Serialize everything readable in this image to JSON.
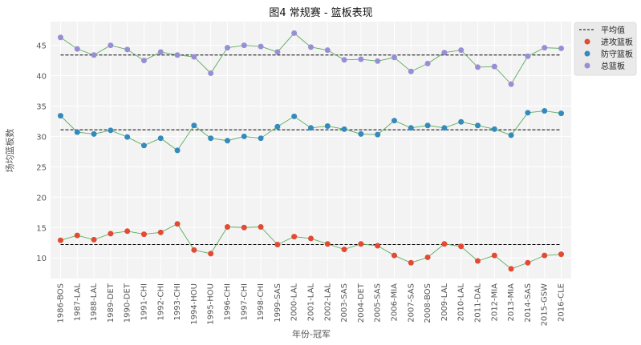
{
  "chart_data": {
    "type": "line",
    "title": "图4 常规赛 - 篮板表现",
    "xlabel": "年份-冠军",
    "ylabel": "场均篮板数",
    "categories": [
      "1986-BOS",
      "1987-LAL",
      "1988-LAL",
      "1989-DET",
      "1990-DET",
      "1991-CHI",
      "1992-CHI",
      "1993-CHI",
      "1994-HOU",
      "1995-HOU",
      "1996-CHI",
      "1997-CHI",
      "1998-CHI",
      "1999-SAS",
      "2000-LAL",
      "2001-LAL",
      "2002-LAL",
      "2003-SAS",
      "2004-DET",
      "2005-SAS",
      "2006-MIA",
      "2007-SAS",
      "2008-BOS",
      "2009-LAL",
      "2010-LAL",
      "2011-DAL",
      "2012-MIA",
      "2013-MIA",
      "2014-SAS",
      "2015-GSW",
      "2016-CLE"
    ],
    "ylim": [
      6.6,
      48.9
    ],
    "yticks": [
      10,
      15,
      20,
      25,
      30,
      35,
      40,
      45
    ],
    "grid": true,
    "legend_position": "outside-top-right",
    "mean_label": "平均值",
    "series": [
      {
        "name": "进攻篮板",
        "color": "#E24A33",
        "mean": 12.2,
        "values": [
          12.9,
          13.7,
          13.0,
          14.0,
          14.4,
          13.9,
          14.2,
          15.6,
          11.3,
          10.7,
          15.1,
          15.0,
          15.1,
          12.2,
          13.5,
          13.2,
          12.3,
          11.4,
          12.3,
          12.0,
          10.4,
          9.2,
          10.1,
          12.3,
          11.9,
          9.5,
          10.4,
          8.2,
          9.2,
          10.4,
          10.6
        ]
      },
      {
        "name": "防守篮板",
        "color": "#348ABD",
        "mean": 31.1,
        "values": [
          33.4,
          30.7,
          30.4,
          31.0,
          29.9,
          28.5,
          29.7,
          27.7,
          31.8,
          29.7,
          29.3,
          30.0,
          29.7,
          31.6,
          33.3,
          31.4,
          31.7,
          31.2,
          30.4,
          30.3,
          32.6,
          31.4,
          31.8,
          31.4,
          32.4,
          31.8,
          31.2,
          30.2,
          33.9,
          34.2,
          33.8
        ]
      },
      {
        "name": "总篮板",
        "color": "#988ED5",
        "mean": 43.4,
        "values": [
          46.3,
          44.4,
          43.4,
          45.0,
          44.3,
          42.5,
          43.9,
          43.4,
          43.1,
          40.4,
          44.6,
          45.0,
          44.8,
          43.9,
          47.0,
          44.7,
          44.2,
          42.6,
          42.7,
          42.4,
          43.0,
          40.7,
          42.0,
          43.8,
          44.2,
          41.4,
          41.5,
          38.6,
          43.2,
          44.6,
          44.5
        ]
      }
    ],
    "line_color": "#5cad5c"
  }
}
